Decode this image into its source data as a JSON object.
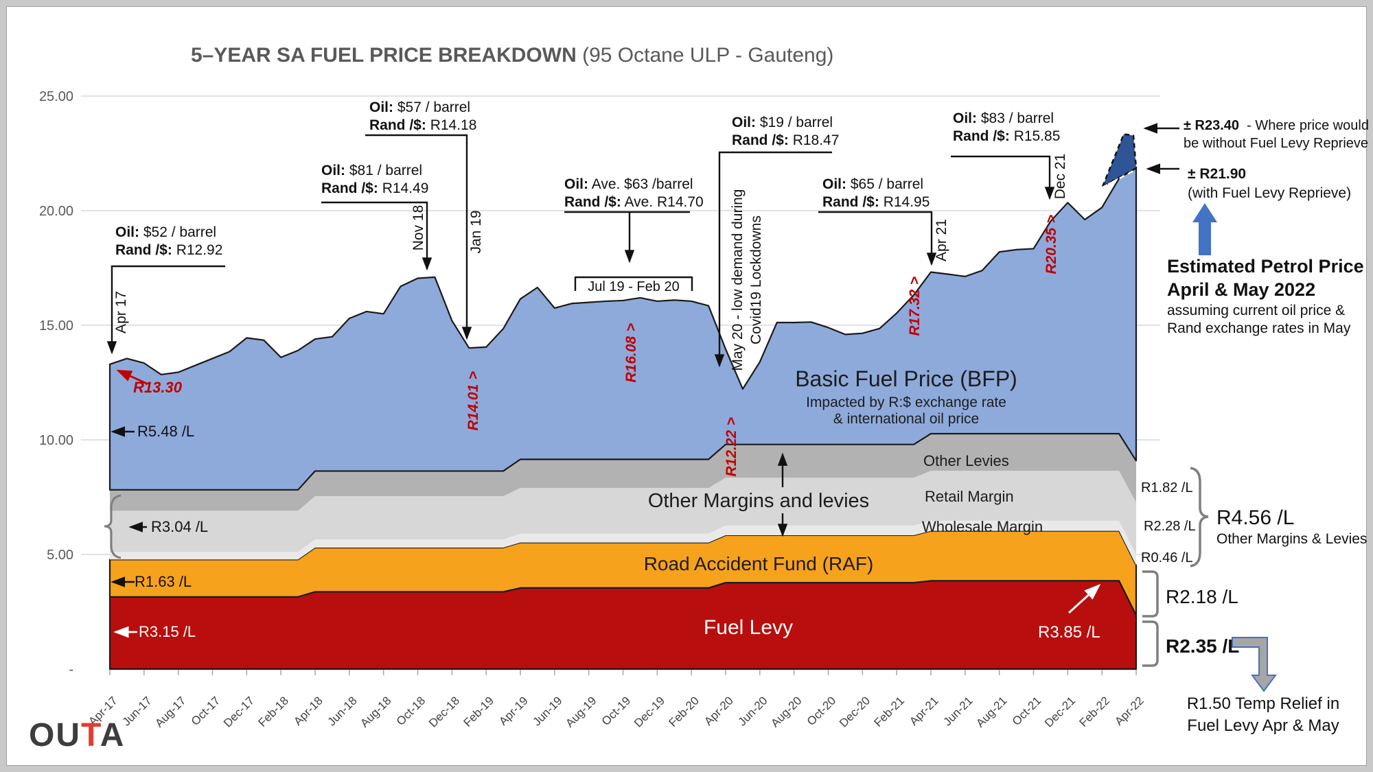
{
  "title": {
    "main": "5–YEAR SA FUEL PRICE BREAKDOWN",
    "sub": "(95 Octane ULP - Gauteng)"
  },
  "logo": {
    "part1": "OU",
    "part2": "T",
    "part3": "A"
  },
  "colors": {
    "bfp": "#8EAADB",
    "bfp_dark": "#2F5597",
    "other_levies": "#B2B2B2",
    "retail_margin": "#D7D7D7",
    "wholesale_margin": "#E9E9E9",
    "raf": "#F6A21D",
    "fuel_levy": "#B90E0E",
    "annotation_red": "#C00000",
    "arrow_blue": "#4472C4",
    "gridline": "#D9D9D9",
    "axis_text": "#595959",
    "tick_text": "#404040",
    "outline": "#1a1a1a",
    "brace_gray": "#7f7f7f",
    "relief_arrow_fill": "#a6a6a6"
  },
  "y_axis": {
    "ticks": [
      {
        "label": "25.00",
        "value": 25
      },
      {
        "label": "20.00",
        "value": 20
      },
      {
        "label": "15.00",
        "value": 15
      },
      {
        "label": "10.00",
        "value": 10
      },
      {
        "label": "5.00",
        "value": 5
      },
      {
        "label": "-",
        "value": 0
      }
    ]
  },
  "chart_data": {
    "type": "area",
    "stacked": true,
    "title": "5–YEAR SA FUEL PRICE BREAKDOWN (95 Octane ULP - Gauteng)",
    "unit": "Rand per litre",
    "months": 61,
    "x_start": "Apr-17",
    "x_end": "Apr-22",
    "ylim": [
      0,
      25
    ],
    "x_tick_labels": [
      "Apr-17",
      "Jun-17",
      "Aug-17",
      "Oct-17",
      "Dec-17",
      "Feb-18",
      "Apr-18",
      "Jun-18",
      "Aug-18",
      "Oct-18",
      "Dec-18",
      "Feb-19",
      "Apr-19",
      "Jun-19",
      "Aug-19",
      "Oct-19",
      "Dec-19",
      "Feb-20",
      "Apr-20",
      "Jun-20",
      "Aug-20",
      "Oct-20",
      "Dec-20",
      "Feb-21",
      "Apr-21",
      "Jun-21",
      "Aug-21",
      "Oct-21",
      "Dec-21",
      "Feb-22",
      "Apr-22"
    ],
    "series_order": [
      "fuel_levy",
      "raf",
      "wholesale_margin",
      "retail_margin",
      "other_levies",
      "basic_fuel_price"
    ],
    "annual_step_series": {
      "note": "values per fiscal year Apr17/18, 18/19, 19/20, 20/21, 21/22, then Apr-2022",
      "fuel_levy": [
        3.15,
        3.37,
        3.54,
        3.77,
        3.85,
        2.35
      ],
      "raf": [
        1.63,
        1.93,
        1.98,
        2.07,
        2.18,
        2.18
      ],
      "wholesale_margin": [
        0.33,
        0.36,
        0.39,
        0.42,
        0.44,
        0.46
      ],
      "retail_margin": [
        1.8,
        1.88,
        1.99,
        2.09,
        2.18,
        2.28
      ],
      "other_levies": [
        0.91,
        1.1,
        1.25,
        1.45,
        1.62,
        1.82
      ]
    },
    "total_pump_price": [
      13.3,
      13.55,
      13.35,
      12.85,
      12.95,
      13.25,
      13.55,
      13.85,
      14.45,
      14.35,
      13.6,
      13.9,
      14.4,
      14.5,
      15.3,
      15.6,
      15.5,
      16.7,
      17.05,
      17.1,
      15.2,
      14.01,
      14.05,
      14.85,
      16.15,
      16.65,
      15.75,
      15.95,
      16.0,
      16.05,
      16.08,
      16.2,
      16.05,
      16.1,
      16.05,
      15.85,
      13.96,
      12.22,
      13.4,
      15.12,
      15.12,
      15.14,
      14.9,
      14.6,
      14.65,
      14.86,
      15.53,
      16.32,
      17.32,
      17.23,
      17.13,
      17.39,
      18.2,
      18.3,
      18.34,
      19.54,
      20.35,
      19.61,
      20.14,
      21.4,
      21.9
    ],
    "with_reprieve_price_apr22": 21.9,
    "no_reprieve_price_apr22": 23.4
  },
  "callouts": [
    {
      "oil_label": "Oil:",
      "oil_value": "$52 / barrel",
      "rand_label": "Rand /$:",
      "rand_value": "R12.92",
      "date": "Apr 17"
    },
    {
      "oil_label": "Oil:",
      "oil_value": "$81 / barrel",
      "rand_label": "Rand /$:",
      "rand_value": "R14.49",
      "date": "Nov 18"
    },
    {
      "oil_label": "Oil:",
      "oil_value": "$57 / barrel",
      "rand_label": "Rand /$:",
      "rand_value": "R14.18",
      "date": "Jan 19"
    },
    {
      "oil_label": "Oil:",
      "oil_value": "Ave. $63 /barrel",
      "rand_label": "Rand /$:",
      "rand_value": "Ave. R14.70",
      "date": "Jul 19 - Feb 20"
    },
    {
      "oil_label": "Oil:",
      "oil_value": "$19 / barrel",
      "rand_label": "Rand /$:",
      "rand_value": "R18.47",
      "date": "May 20 - low demand during",
      "date2": "Covid19 Lockdowns"
    },
    {
      "oil_label": "Oil:",
      "oil_value": "$65 / barrel",
      "rand_label": "Rand /$:",
      "rand_value": "R14.95",
      "date": "Apr 21"
    },
    {
      "oil_label": "Oil:",
      "oil_value": "$83 / barrel",
      "rand_label": "Rand /$:",
      "rand_value": "R15.85",
      "date": "Dec 21"
    }
  ],
  "price_markers": {
    "arrow_glyph": ">",
    "items": [
      {
        "id": "apr17",
        "value": "R13.30"
      },
      {
        "id": "jan19",
        "value": "R14.01"
      },
      {
        "id": "oct19",
        "value": "R16.08"
      },
      {
        "id": "may20",
        "value": "R12.22"
      },
      {
        "id": "apr21",
        "value": "R17.32"
      },
      {
        "id": "dec21",
        "value": "R20.35"
      }
    ]
  },
  "band_labels": {
    "bfp_title": "Basic Fuel Price (BFP)",
    "bfp_sub1": "Impacted by R:$ exchange rate",
    "bfp_sub2": "& international oil price",
    "other_levies": "Other Levies",
    "retail_margin": "Retail Margin",
    "wholesale_margin": "Wholesale Margin",
    "other_margins": "Other Margins and levies",
    "raf": "Road Accident Fund (RAF)",
    "fuel_levy": "Fuel Levy"
  },
  "left_labels": {
    "bfp": "R5.48 /L",
    "margins": "R3.04 /L",
    "raf": "R1.63 /L",
    "fuel_levy": "R3.15 /L"
  },
  "in_chart_right": {
    "fuel_levy_2122": "R3.85 /L"
  },
  "right_panel": {
    "no_reprieve_price": "± R23.40",
    "no_reprieve_text": "- Where price would be without Fuel Levy Reprieve",
    "with_reprieve_price": "± R21.90",
    "with_reprieve_text": "(with Fuel Levy Reprieve)",
    "estimate_title1": "Estimated Petrol Price",
    "estimate_title2": "April & May 2022",
    "estimate_sub1": "assuming current oil price &",
    "estimate_sub2": "Rand exchange rates in May",
    "other_levies_component": "R1.82 /L",
    "retail_component": "R2.28 /L",
    "wholesale_component": "R0.46 /L",
    "margins_total": "R4.56 /L",
    "margins_total_label": "Other Margins & Levies",
    "raf_total": "R2.18 /L",
    "fuel_levy_total": "R2.35 /L",
    "relief_line1": "R1.50 Temp Relief in",
    "relief_line2": "Fuel Levy Apr & May"
  }
}
